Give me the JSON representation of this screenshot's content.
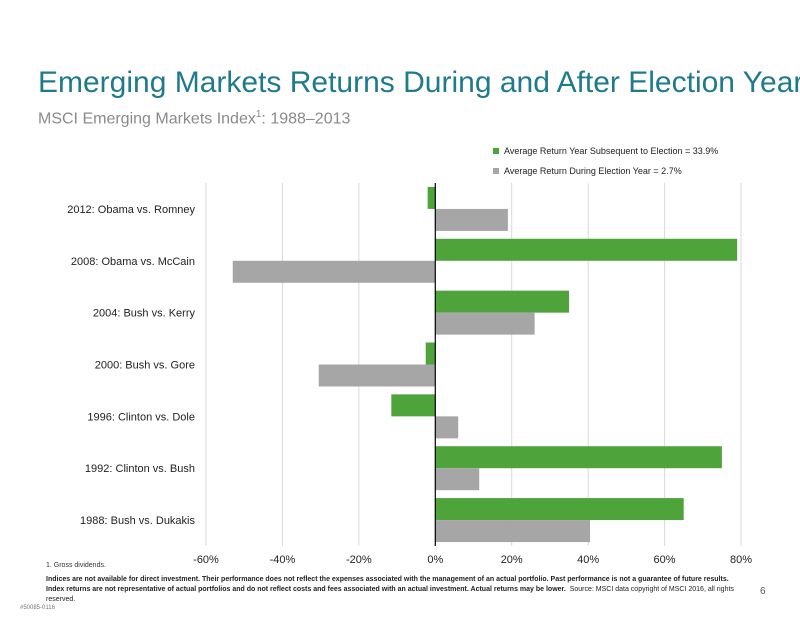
{
  "header": {
    "title": "Emerging Markets Returns During and After Election Years",
    "subtitle_main": "MSCI Emerging Markets Index",
    "subtitle_sup": "1",
    "subtitle_rest": ": 1988–2013"
  },
  "colors": {
    "green": "#4fa33b",
    "gray": "#a6a6a6",
    "title": "#1f7a8c"
  },
  "chart_data": {
    "type": "bar",
    "orientation": "horizontal",
    "categories": [
      "2012: Obama vs. Romney",
      "2008: Obama vs. McCain",
      "2004: Bush vs. Kerry",
      "2000: Bush vs. Gore",
      "1996: Clinton vs. Dole",
      "1992: Clinton vs. Bush",
      "1988: Bush vs. Dukakis"
    ],
    "series": [
      {
        "name": "Average Return Year Subsequent to Election = 33.9%",
        "color": "#4fa33b",
        "values": [
          -2,
          79,
          35,
          -2.5,
          -11.5,
          75,
          65
        ]
      },
      {
        "name": "Average Return During Election Year = 2.7%",
        "color": "#a6a6a6",
        "values": [
          19,
          -53,
          26,
          -30.5,
          6,
          11.5,
          40.5
        ]
      }
    ],
    "xlim": [
      -60,
      80
    ],
    "xticks": [
      "-60%",
      "-40%",
      "-20%",
      "0%",
      "20%",
      "40%",
      "60%",
      "80%"
    ],
    "grid": true,
    "legend_position": "top-right"
  },
  "footer": {
    "footnote": "1. Gross dividends.",
    "disclaimer_bold": "Indices are not available for direct investment. Their performance does not reflect the expenses associated with the management of an actual portfolio. Past performance is not a guarantee of future results. Index returns are not representative of actual portfolios and do not reflect costs and fees associated with an actual investment. Actual returns may be lower.",
    "disclaimer_source": "Source: MSCI data copyright of MSCI 2016, all rights reserved.",
    "page_number": "6",
    "doc_id": "#50085-0116"
  }
}
